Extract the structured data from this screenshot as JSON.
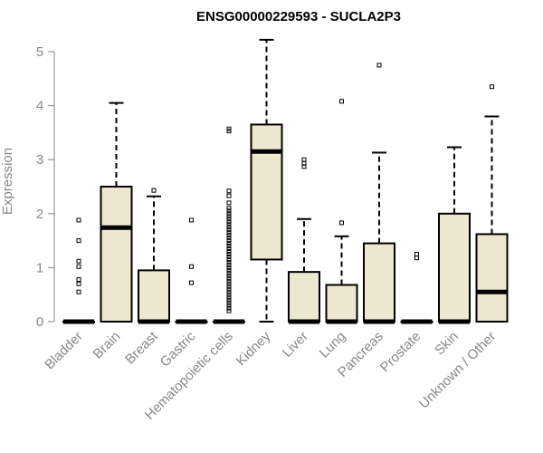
{
  "chart_data": {
    "type": "boxplot",
    "title": "ENSG00000229593 - SUCLA2P3",
    "xlabel": "",
    "ylabel": "Expression",
    "ylim": [
      0,
      5
    ],
    "yticks": [
      0,
      1,
      2,
      3,
      4,
      5
    ],
    "grid": false,
    "box_fill": "#ede7cf",
    "categories": [
      "Bladder",
      "Brain",
      "Breast",
      "Gastric",
      "Hematopoietic cells",
      "Kidney",
      "Liver",
      "Lung",
      "Pancreas",
      "Prostate",
      "Skin",
      "Unknown / Other"
    ],
    "boxes": [
      {
        "name": "Bladder",
        "min": 0,
        "q1": 0,
        "median": 0,
        "q3": 0,
        "max": 0,
        "outliers": [
          1.88,
          1.5,
          1.12,
          1.02,
          0.78,
          0.7,
          0.55
        ]
      },
      {
        "name": "Brain",
        "min": 0,
        "q1": 0,
        "median": 1.74,
        "q3": 2.5,
        "max": 4.05,
        "outliers": []
      },
      {
        "name": "Breast",
        "min": 0,
        "q1": 0,
        "median": 0,
        "q3": 0.95,
        "max": 2.32,
        "outliers": [
          2.43
        ]
      },
      {
        "name": "Gastric",
        "min": 0,
        "q1": 0,
        "median": 0,
        "q3": 0,
        "max": 0,
        "outliers": [
          1.88,
          1.02,
          0.72
        ]
      },
      {
        "name": "Hematopoietic cells",
        "min": 0,
        "q1": 0,
        "median": 0,
        "q3": 0,
        "max": 0,
        "outliers": [
          3.57,
          3.53,
          2.42,
          2.33,
          2.2,
          2.1,
          2.05,
          2.0,
          1.95,
          1.9,
          1.85,
          1.8,
          1.75,
          1.7,
          1.65,
          1.6,
          1.55,
          1.5,
          1.45,
          1.4,
          1.35,
          1.3,
          1.25,
          1.2,
          1.15,
          1.1,
          1.05,
          1.0,
          0.95,
          0.9,
          0.85,
          0.8,
          0.75,
          0.7,
          0.65,
          0.6,
          0.55,
          0.5,
          0.45,
          0.4,
          0.35,
          0.3,
          0.25,
          0.2
        ]
      },
      {
        "name": "Kidney",
        "min": 0,
        "q1": 1.15,
        "median": 3.15,
        "q3": 3.65,
        "max": 5.22,
        "outliers": []
      },
      {
        "name": "Liver",
        "min": 0,
        "q1": 0,
        "median": 0,
        "q3": 0.92,
        "max": 1.9,
        "outliers": [
          3.0,
          2.93,
          2.87
        ]
      },
      {
        "name": "Lung",
        "min": 0,
        "q1": 0,
        "median": 0,
        "q3": 0.68,
        "max": 1.58,
        "outliers": [
          4.08,
          1.83
        ]
      },
      {
        "name": "Pancreas",
        "min": 0,
        "q1": 0,
        "median": 0,
        "q3": 1.45,
        "max": 3.13,
        "outliers": [
          4.75
        ]
      },
      {
        "name": "Prostate",
        "min": 0,
        "q1": 0,
        "median": 0,
        "q3": 0,
        "max": 0,
        "outliers": [
          1.25,
          1.18
        ]
      },
      {
        "name": "Skin",
        "min": 0,
        "q1": 0,
        "median": 0,
        "q3": 2.0,
        "max": 3.23,
        "outliers": []
      },
      {
        "name": "Unknown / Other",
        "min": 0,
        "q1": 0,
        "median": 0.55,
        "q3": 1.62,
        "max": 3.8,
        "outliers": [
          4.35
        ]
      }
    ]
  }
}
